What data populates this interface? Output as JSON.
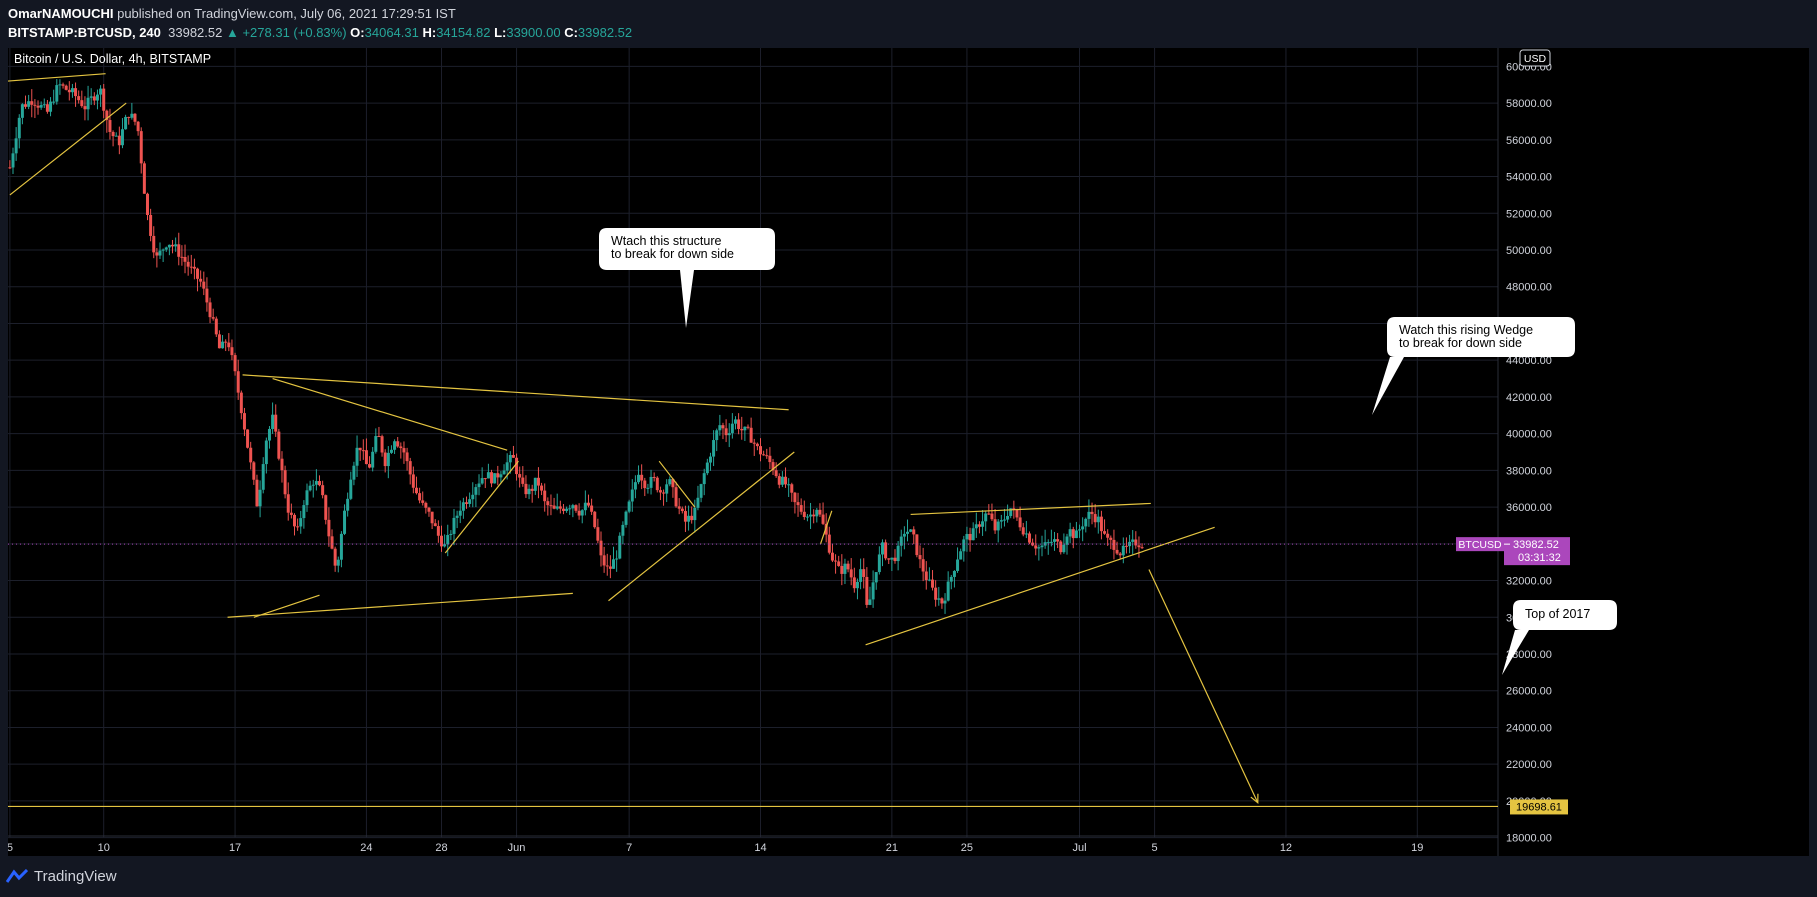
{
  "header": {
    "author": "OmarNAMOUCHI",
    "published": "published on TradingView.com, July 06, 2021 17:29:51 IST",
    "symbol": "BITSTAMP:BTCUSD, 240",
    "last": "33982.52",
    "change": "▲ +278.31 (+0.83%)",
    "o_label": "O:",
    "o_value": "34064.31",
    "h_label": "H:",
    "h_value": "34154.82",
    "l_label": "L:",
    "l_value": "33900.00",
    "c_label": "C:",
    "c_value": "33982.52"
  },
  "chart_title": "Bitcoin / U.S. Dollar, 4h, BITSTAMP",
  "currency": "USD",
  "price_tag": {
    "symbol": "BTCUSD",
    "value": "33982.52",
    "countdown": "03:31:32"
  },
  "level_tag": "19698.61",
  "callouts": [
    {
      "line1": "Wtach this structure",
      "line2": "to break for down side"
    },
    {
      "line1": "Watch this rising Wedge",
      "line2": "to break for down side"
    },
    {
      "line1": "Top of 2017",
      "line2": ""
    }
  ],
  "footer": {
    "brand": "TradingView"
  },
  "colors": {
    "bg": "#131722",
    "up": "#26a69a",
    "down": "#ef5350",
    "line": "#e4c441",
    "tag": "#ab47bc"
  },
  "chart_data": {
    "type": "candlestick",
    "title": "Bitcoin / U.S. Dollar, 4h, BITSTAMP",
    "ylim": [
      17000,
      61000
    ],
    "y_ticks": [
      18000,
      20000,
      22000,
      24000,
      26000,
      28000,
      30000,
      32000,
      34000,
      36000,
      38000,
      40000,
      42000,
      44000,
      46000,
      48000,
      50000,
      52000,
      54000,
      56000,
      58000,
      60000
    ],
    "y_tick_labels": [
      "18000.00",
      "20000.00",
      "22000.00",
      "24000.00",
      "26000.00",
      "28000.00",
      "30000.00",
      "32000.00",
      "34000.00",
      "36000.00",
      "38000.00",
      "40000.00",
      "42000.00",
      "44000.00",
      "46000.00",
      "48000.00",
      "50000.00",
      "52000.00",
      "54000.00",
      "56000.00",
      "58000.00",
      "60000.00"
    ],
    "x_ticks": [
      {
        "day": 5,
        "label": "5"
      },
      {
        "day": 10,
        "label": "10"
      },
      {
        "day": 17,
        "label": "17"
      },
      {
        "day": 24,
        "label": "24"
      },
      {
        "day": 28,
        "label": "28"
      },
      {
        "day": 32,
        "label": "Jun"
      },
      {
        "day": 38,
        "label": "7"
      },
      {
        "day": 45,
        "label": "14"
      },
      {
        "day": 52,
        "label": "21"
      },
      {
        "day": 56,
        "label": "25"
      },
      {
        "day": 62,
        "label": "Jul"
      },
      {
        "day": 66,
        "label": "5"
      },
      {
        "day": 73,
        "label": "12"
      },
      {
        "day": 80,
        "label": "19"
      }
    ],
    "xlim": [
      4.9,
      84.3
    ],
    "price_path": [
      [
        5.0,
        54500
      ],
      [
        5.6,
        57800
      ],
      [
        6.2,
        58200
      ],
      [
        7.0,
        57500
      ],
      [
        7.6,
        59000
      ],
      [
        8.4,
        58500
      ],
      [
        9.0,
        57800
      ],
      [
        9.8,
        58800
      ],
      [
        10.3,
        56500
      ],
      [
        10.8,
        55800
      ],
      [
        11.3,
        57500
      ],
      [
        11.8,
        56800
      ],
      [
        12.3,
        52000
      ],
      [
        12.8,
        49500
      ],
      [
        13.4,
        50500
      ],
      [
        13.9,
        50000
      ],
      [
        14.6,
        49000
      ],
      [
        15.2,
        48200
      ],
      [
        15.7,
        46500
      ],
      [
        16.2,
        44500
      ],
      [
        16.6,
        45200
      ],
      [
        17.0,
        43200
      ],
      [
        17.4,
        41000
      ],
      [
        17.8,
        38500
      ],
      [
        18.2,
        36000
      ],
      [
        18.6,
        39500
      ],
      [
        19.0,
        40800
      ],
      [
        19.4,
        38500
      ],
      [
        19.8,
        36000
      ],
      [
        20.3,
        34500
      ],
      [
        20.7,
        36500
      ],
      [
        21.2,
        37500
      ],
      [
        21.6,
        36800
      ],
      [
        22.0,
        34500
      ],
      [
        22.4,
        32500
      ],
      [
        22.8,
        35500
      ],
      [
        23.2,
        38000
      ],
      [
        23.6,
        39500
      ],
      [
        24.1,
        38000
      ],
      [
        24.6,
        40000
      ],
      [
        25.0,
        38500
      ],
      [
        25.5,
        39800
      ],
      [
        26.0,
        39000
      ],
      [
        26.5,
        37200
      ],
      [
        26.9,
        36200
      ],
      [
        27.4,
        35500
      ],
      [
        27.8,
        34500
      ],
      [
        28.2,
        33800
      ],
      [
        28.6,
        35000
      ],
      [
        29.0,
        36000
      ],
      [
        29.4,
        36500
      ],
      [
        29.8,
        37200
      ],
      [
        30.3,
        37800
      ],
      [
        30.8,
        37500
      ],
      [
        31.3,
        38200
      ],
      [
        31.8,
        38700
      ],
      [
        32.3,
        37000
      ],
      [
        32.7,
        36800
      ],
      [
        33.1,
        37500
      ],
      [
        33.5,
        36200
      ],
      [
        34.0,
        35800
      ],
      [
        34.5,
        36000
      ],
      [
        35.0,
        36200
      ],
      [
        35.4,
        35700
      ],
      [
        35.8,
        36200
      ],
      [
        36.2,
        34800
      ],
      [
        36.5,
        33200
      ],
      [
        36.9,
        32500
      ],
      [
        37.3,
        33300
      ],
      [
        37.7,
        35000
      ],
      [
        38.1,
        36500
      ],
      [
        38.5,
        38000
      ],
      [
        38.9,
        37200
      ],
      [
        39.3,
        37500
      ],
      [
        39.7,
        36800
      ],
      [
        40.1,
        37500
      ],
      [
        40.6,
        36000
      ],
      [
        41.0,
        35200
      ],
      [
        41.5,
        35700
      ],
      [
        42.0,
        37800
      ],
      [
        42.4,
        39200
      ],
      [
        42.8,
        40500
      ],
      [
        43.2,
        40000
      ],
      [
        43.6,
        40800
      ],
      [
        44.0,
        40200
      ],
      [
        44.4,
        40000
      ],
      [
        44.8,
        39200
      ],
      [
        45.2,
        38800
      ],
      [
        45.6,
        38300
      ],
      [
        46.0,
        37500
      ],
      [
        46.4,
        37200
      ],
      [
        46.8,
        36200
      ],
      [
        47.2,
        35800
      ],
      [
        47.6,
        35500
      ],
      [
        48.0,
        36000
      ],
      [
        48.4,
        34800
      ],
      [
        48.8,
        33300
      ],
      [
        49.2,
        32500
      ],
      [
        49.6,
        32800
      ],
      [
        50.0,
        31800
      ],
      [
        50.4,
        32800
      ],
      [
        50.7,
        30200
      ],
      [
        51.1,
        32500
      ],
      [
        51.5,
        33800
      ],
      [
        51.9,
        33000
      ],
      [
        52.3,
        33500
      ],
      [
        52.7,
        34800
      ],
      [
        53.1,
        34500
      ],
      [
        53.5,
        33000
      ],
      [
        53.9,
        32000
      ],
      [
        54.3,
        31200
      ],
      [
        54.7,
        30800
      ],
      [
        55.1,
        32000
      ],
      [
        55.5,
        33300
      ],
      [
        55.9,
        34300
      ],
      [
        56.3,
        34500
      ],
      [
        56.7,
        35200
      ],
      [
        57.1,
        35700
      ],
      [
        57.5,
        34800
      ],
      [
        57.9,
        35200
      ],
      [
        58.3,
        36000
      ],
      [
        58.6,
        35500
      ],
      [
        59.0,
        34800
      ],
      [
        59.4,
        34200
      ],
      [
        59.8,
        33800
      ],
      [
        60.2,
        33900
      ],
      [
        60.6,
        34200
      ],
      [
        61.0,
        33800
      ],
      [
        61.4,
        34800
      ],
      [
        61.8,
        34400
      ],
      [
        62.2,
        35200
      ],
      [
        62.6,
        35700
      ],
      [
        63.0,
        35300
      ],
      [
        63.4,
        34200
      ],
      [
        63.8,
        34000
      ],
      [
        64.2,
        33500
      ],
      [
        64.6,
        33800
      ],
      [
        65.0,
        34100
      ],
      [
        65.4,
        33982
      ]
    ],
    "lines": [
      {
        "x1": 5.0,
        "y1": 53000,
        "x2": 11.2,
        "y2": 58000
      },
      {
        "x1": 4.9,
        "y1": 59200,
        "x2": 10.1,
        "y2": 59600
      },
      {
        "x1": 16.6,
        "y1": 30000,
        "x2": 35.0,
        "y2": 31300
      },
      {
        "x1": 18.0,
        "y1": 30000,
        "x2": 21.5,
        "y2": 31200
      },
      {
        "x1": 17.4,
        "y1": 43200,
        "x2": 46.5,
        "y2": 41300
      },
      {
        "x1": 19.0,
        "y1": 43000,
        "x2": 31.5,
        "y2": 39100
      },
      {
        "x1": 28.2,
        "y1": 33500,
        "x2": 32.1,
        "y2": 38500
      },
      {
        "x1": 36.9,
        "y1": 30900,
        "x2": 46.8,
        "y2": 39000
      },
      {
        "x1": 39.6,
        "y1": 38500,
        "x2": 41.5,
        "y2": 36000
      },
      {
        "x1": 48.2,
        "y1": 34000,
        "x2": 48.8,
        "y2": 35800
      },
      {
        "x1": 50.6,
        "y1": 28500,
        "x2": 69.2,
        "y2": 34900
      },
      {
        "x1": 53.0,
        "y1": 35600,
        "x2": 65.8,
        "y2": 36200
      },
      {
        "x1": 4.9,
        "y1": 19698.61,
        "x2": 84.3,
        "y2": 19698.61
      }
    ],
    "arrow": {
      "x1": 65.7,
      "y1": 32600,
      "x2": 71.5,
      "y2": 19900
    },
    "current_price": 33982.52,
    "level": 19698.61
  }
}
